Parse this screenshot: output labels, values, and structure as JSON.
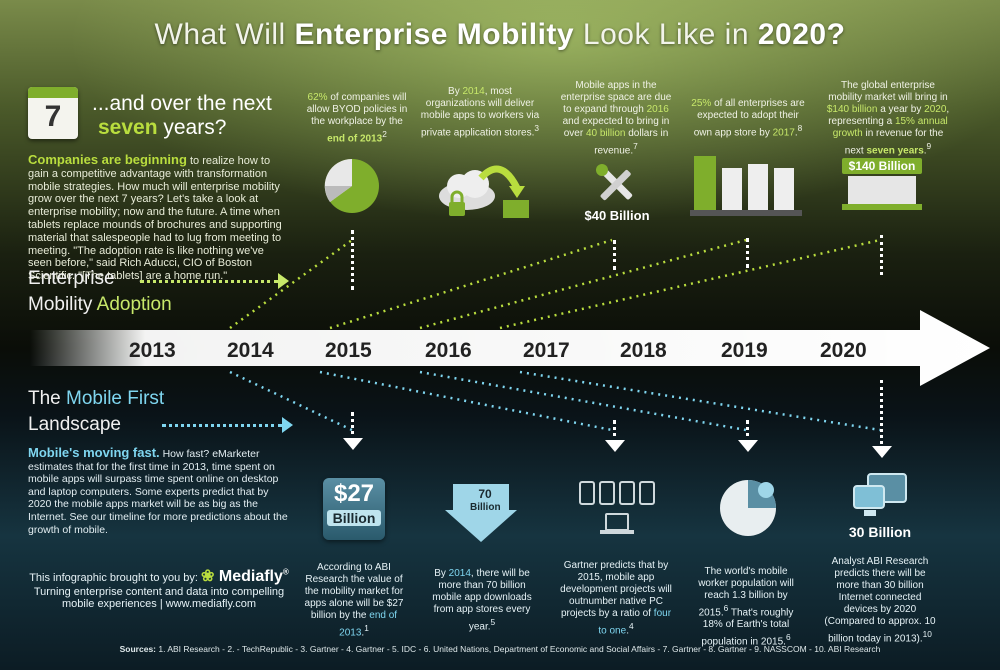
{
  "title": {
    "pre": "What Will ",
    "bold": "Enterprise Mobility",
    "mid": " Look Like in ",
    "year": "2020?"
  },
  "calendar": {
    "number": "7"
  },
  "headline": {
    "line1": "...and over the next",
    "line2a": "seven",
    "line2b": " years?"
  },
  "intro": {
    "lead": "Companies are beginning",
    "body": " to realize how to gain a competitive advantage with transformation mobile strategies. How much will enterprise mobility grow over the next 7 years?  Let's take a look at enterprise mobility; now and the future. A time when tablets replace mounds of brochures and supporting material that salespeople had to lug from meeting to meeting. \"The adoption rate is like nothing we've seen before,\" said Rich Aducci, CIO of Boston Scientific. \"[The tablets] are a home run.\""
  },
  "adoption": {
    "line1": "Enterprise",
    "line2a": "Mobility ",
    "line2b": "Adoption"
  },
  "top_facts": {
    "f2015": {
      "pct": "62%",
      "t1": " of companies will allow BYOD policies in the workplace by the ",
      "t2": "end of",
      "t3": "2013",
      "sup": "2"
    },
    "f2016": {
      "t0": "By ",
      "y": "2014",
      "t1": ", most organizations will deliver mobile apps to workers via private application stores.",
      "sup": "3"
    },
    "f2018": {
      "t1": "Mobile apps in the enterprise space are due to expand through ",
      "y": "2016",
      "t2": " and expected to bring in over ",
      "amt": "40 billion",
      "t3": " dollars in revenue.",
      "sup": "7",
      "badge": "$40 Billion"
    },
    "f2019": {
      "pct": "25%",
      "t1": " of all enterprises are expected to adopt their own app store by ",
      "y": "2017",
      "sup": "8"
    },
    "f2020": {
      "t1": "The global enterprise mobility market will bring in ",
      "amt": "$140 billion",
      "t2": " a year by ",
      "y": "2020",
      "t3": ", representing a ",
      "pct": "15% annual growth",
      "t4": " in revenue for the next ",
      "yrs": "seven years",
      "sup": "9",
      "sign": "$140 Billion"
    }
  },
  "years": [
    "2013",
    "2014",
    "2015",
    "2016",
    "2017",
    "2018",
    "2019",
    "2020"
  ],
  "mobile_first": {
    "line1a": "The ",
    "line1b": "Mobile First",
    "line2": "Landscape"
  },
  "mobile_intro": {
    "lead": "Mobile's moving fast.",
    "body": " How fast? eMarketer estimates that for the first time in 2013, time spent on mobile apps will surpass time spent online on desktop and laptop computers. Some experts predict that by 2020 the mobile apps market will be as big as the Internet. See our timeline for more predictions about the growth of mobile."
  },
  "brought": {
    "label": "This infographic brought to you by:",
    "brand": "Mediafly",
    "reg": "®",
    "tagline1": "Turning enterprise content and data into compelling",
    "tagline2": "mobile experiences  |  www.mediafly.com"
  },
  "bottom_facts": {
    "b2015": {
      "badge1": "$27",
      "badge2": "Billion",
      "t1": "According to ABI Research the value of the mobility market for apps alone will be $27 billion by the ",
      "hl": "end of 2013",
      "sup": "1"
    },
    "b2016": {
      "badge1": "70",
      "badge2": "Billion",
      "t0": "By ",
      "y": "2014",
      "t1": ", there will be more than 70 billion mobile app downloads from app stores every year.",
      "sup": "5"
    },
    "b2018": {
      "t1": "Gartner predicts that by 2015, mobile app development projects will outnumber native PC projects by a ratio of ",
      "hl": "four to one",
      "sup": "4"
    },
    "b2019": {
      "t1": "The world's mobile worker population will reach 1.3 billion by 2015.",
      "sup1": "6",
      "t2": " That's roughly 18% of Earth's total population in 2015.",
      "sup2": "6"
    },
    "b2020": {
      "badge": "30 Billion",
      "t1": "Analyst ABI Research predicts there will be more than 30 billion Internet connected devices by 2020 (Compared to approx. 10 billion today in 2013).",
      "sup": "10"
    }
  },
  "sources": {
    "label": "Sources:",
    "text": " 1. ABI Research - 2. - TechRepublic - 3. Gartner - 4. Gartner - 5. IDC - 6. United Nations, Department of Economic and Social Affairs - 7. Gartner - 8. Gartner - 9. NASSCOM - 10. ABI Research"
  },
  "colors": {
    "accent_green": "#b9dd3e",
    "accent_cyan": "#7fd6f0"
  }
}
